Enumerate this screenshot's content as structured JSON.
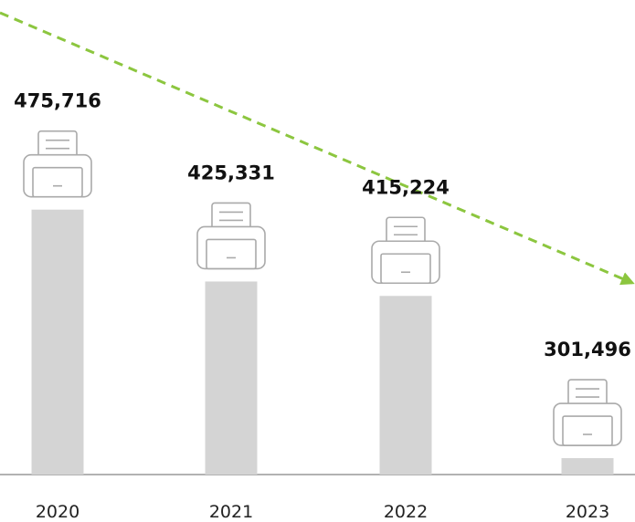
{
  "chart_data": {
    "type": "bar",
    "categories": [
      "2020",
      "2021",
      "2022",
      "2023"
    ],
    "values": [
      475716,
      425331,
      415224,
      301496
    ],
    "value_labels": [
      "475,716",
      "425,331",
      "415,224",
      "301,496"
    ],
    "color": "#d4d4d4",
    "ylim": [
      290000,
      480000
    ]
  }
}
